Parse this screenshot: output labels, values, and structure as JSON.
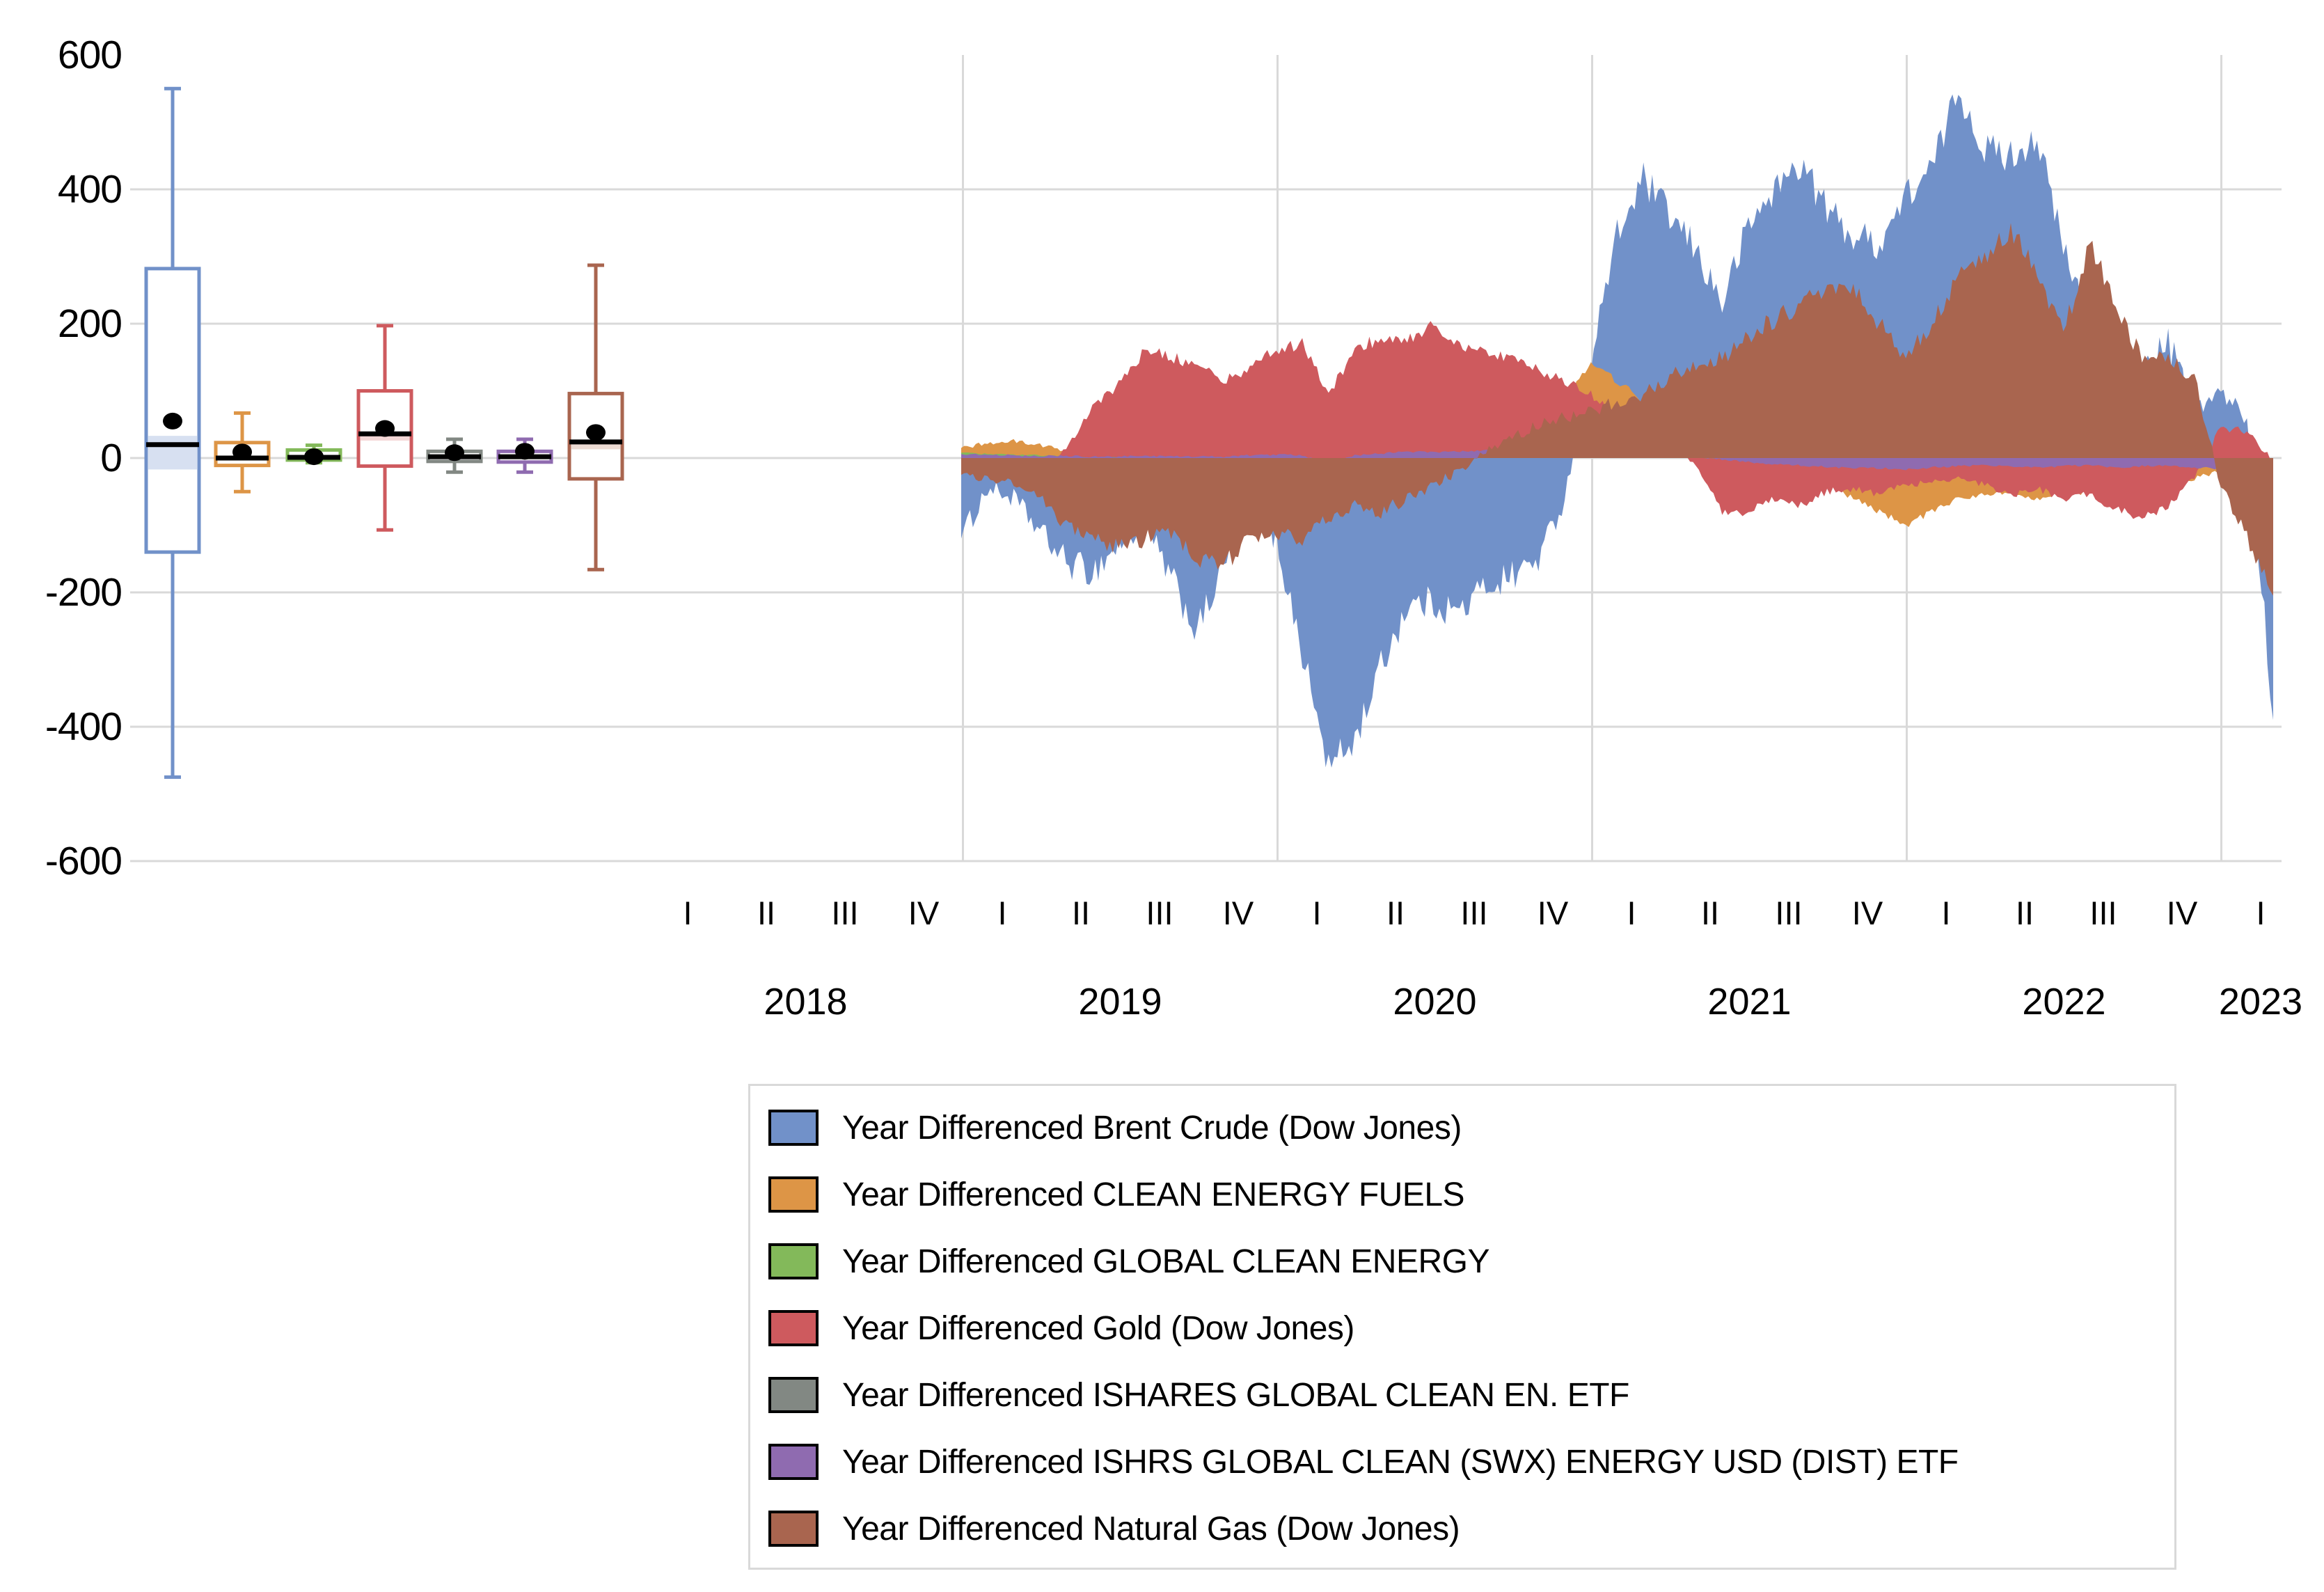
{
  "y_axis": {
    "tick_labels": [
      "600",
      "400",
      "200",
      "0",
      "-200",
      "-400",
      "-600"
    ],
    "tick_values": [
      600,
      400,
      200,
      0,
      -200,
      -400,
      -600
    ]
  },
  "x_axis": {
    "quarter_labels": [
      "I",
      "II",
      "III",
      "IV",
      "I",
      "II",
      "III",
      "IV",
      "I",
      "II",
      "III",
      "IV",
      "I",
      "II",
      "III",
      "IV",
      "I",
      "II",
      "III",
      "IV",
      "I"
    ],
    "year_labels": [
      "2018",
      "2019",
      "2020",
      "2021",
      "2022",
      "2023"
    ]
  },
  "colors": {
    "gridline": "#d9d9d9",
    "text": "#000000",
    "legend_border": "#d9d9d9",
    "background": "#ffffff"
  },
  "legend": {
    "items": [
      {
        "label": "Year Differenced Brent Crude (Dow Jones)",
        "color": "#7191C9"
      },
      {
        "label": "Year Differenced CLEAN ENERGY FUELS",
        "color": "#DD9546"
      },
      {
        "label": "Year Differenced GLOBAL CLEAN ENERGY",
        "color": "#83B95A"
      },
      {
        "label": "Year Differenced Gold  (Dow Jones)",
        "color": "#CE5A5E"
      },
      {
        "label": "Year Differenced ISHARES GLOBAL CLEAN EN. ETF",
        "color": "#828883"
      },
      {
        "label": "Year Differenced ISHRS GLOBAL CLEAN (SWX) ENERGY USD (DIST) ETF",
        "color": "#8F6BB0"
      },
      {
        "label": "Year Differenced Natural Gas (Dow Jones)",
        "color": "#A9654F"
      }
    ]
  },
  "chart_data": {
    "type": "area",
    "title": "",
    "xlabel": "",
    "ylabel": "",
    "ylim": [
      -600,
      600
    ],
    "grid": "on",
    "legend_position": "bottom",
    "gridline_values": [
      400,
      200,
      0,
      -200,
      -400,
      -600
    ],
    "year_boundary_gridlines": [
      "2019-01",
      "2020-01",
      "2021-01",
      "2022-01",
      "2023-01"
    ],
    "x_monthly": [
      "2019-01",
      "2019-02",
      "2019-03",
      "2019-04",
      "2019-05",
      "2019-06",
      "2019-07",
      "2019-08",
      "2019-09",
      "2019-10",
      "2019-11",
      "2019-12",
      "2020-01",
      "2020-02",
      "2020-03",
      "2020-04",
      "2020-05",
      "2020-06",
      "2020-07",
      "2020-08",
      "2020-09",
      "2020-10",
      "2020-11",
      "2020-12",
      "2021-01",
      "2021-02",
      "2021-03",
      "2021-04",
      "2021-05",
      "2021-06",
      "2021-07",
      "2021-08",
      "2021-09",
      "2021-10",
      "2021-11",
      "2021-12",
      "2022-01",
      "2022-02",
      "2022-03",
      "2022-04",
      "2022-05",
      "2022-06",
      "2022-07",
      "2022-08",
      "2022-09",
      "2022-10",
      "2022-11",
      "2022-12",
      "2023-01",
      "2023-02",
      "2023-03"
    ],
    "series": [
      {
        "name": "Year Differenced Brent Crude (Dow Jones)",
        "key": "brent",
        "color": "#7191C9",
        "noise": 26,
        "values": [
          -120,
          -45,
          -60,
          -110,
          -155,
          -170,
          -130,
          -100,
          -180,
          -260,
          -160,
          -90,
          -120,
          -290,
          -460,
          -420,
          -310,
          -220,
          -215,
          -230,
          -190,
          -175,
          -150,
          -60,
          150,
          330,
          415,
          360,
          310,
          230,
          345,
          400,
          440,
          370,
          330,
          320,
          390,
          430,
          550,
          460,
          450,
          480,
          310,
          200,
          105,
          130,
          170,
          80,
          95,
          60,
          -390
        ]
      },
      {
        "name": "Year Differenced CLEAN ENERGY FUELS",
        "key": "clean-energy-fuels",
        "color": "#DD9546",
        "noise": 7,
        "values": [
          15,
          22,
          25,
          20,
          10,
          5,
          0,
          0,
          0,
          0,
          0,
          0,
          0,
          0,
          0,
          0,
          0,
          0,
          5,
          10,
          15,
          25,
          40,
          90,
          140,
          115,
          85,
          50,
          20,
          -10,
          -25,
          -30,
          -35,
          -40,
          -60,
          -80,
          -100,
          -80,
          -60,
          -55,
          -50,
          -60,
          -55,
          -50,
          -60,
          -55,
          -40,
          -30,
          -20,
          -35,
          -25
        ]
      },
      {
        "name": "Year Differenced GLOBAL CLEAN ENERGY",
        "key": "global-clean-energy",
        "color": "#83B95A",
        "noise": 2.5,
        "values": [
          8,
          6,
          5,
          4,
          3,
          2,
          2,
          3,
          3,
          2,
          2,
          4,
          4,
          3,
          -5,
          3,
          6,
          8,
          8,
          9,
          10,
          10,
          12,
          15,
          18,
          12,
          8,
          5,
          2,
          0,
          -2,
          -4,
          -5,
          -6,
          -8,
          -8,
          -10,
          -8,
          -6,
          -5,
          -6,
          -8,
          -6,
          -5,
          -8,
          -6,
          -5,
          -8,
          -10,
          -15,
          -8
        ]
      },
      {
        "name": "Year Differenced Gold  (Dow Jones)",
        "key": "gold",
        "color": "#CE5A5E",
        "noise": 10,
        "values": [
          -15,
          -20,
          -30,
          -30,
          15,
          75,
          110,
          160,
          150,
          140,
          115,
          135,
          160,
          170,
          95,
          160,
          180,
          175,
          200,
          165,
          155,
          150,
          130,
          115,
          95,
          65,
          40,
          25,
          -10,
          -80,
          -80,
          -60,
          -70,
          -50,
          -45,
          -55,
          -40,
          -35,
          -30,
          -40,
          -55,
          -45,
          -60,
          -55,
          -75,
          -90,
          -70,
          -30,
          45,
          40,
          -5
        ]
      },
      {
        "name": "Year Differenced ISHARES GLOBAL CLEAN EN. ETF",
        "key": "ishares-global-clean",
        "color": "#828883",
        "noise": 2.5,
        "values": [
          5,
          4,
          3,
          2,
          2,
          1,
          1,
          2,
          2,
          1,
          1,
          3,
          3,
          2,
          -6,
          2,
          5,
          7,
          7,
          8,
          9,
          9,
          11,
          14,
          16,
          11,
          7,
          4,
          1,
          -1,
          -3,
          -5,
          -6,
          -7,
          -9,
          -9,
          -11,
          -9,
          -7,
          -6,
          -7,
          -9,
          -7,
          -6,
          -9,
          -7,
          -6,
          -9,
          -11,
          -16,
          -9
        ]
      },
      {
        "name": "Year Differenced ISHRS GLOBAL CLEAN (SWX) ENERGY USD (DIST) ETF",
        "key": "ishrs-swx",
        "color": "#8F6BB0",
        "noise": 3.5,
        "values": [
          6,
          5,
          4,
          3,
          3,
          2,
          2,
          3,
          3,
          2,
          2,
          4,
          5,
          4,
          -8,
          4,
          7,
          9,
          9,
          10,
          11,
          11,
          14,
          18,
          22,
          15,
          10,
          6,
          2,
          -2,
          -6,
          -9,
          -11,
          -13,
          -15,
          -15,
          -17,
          -14,
          -12,
          -11,
          -12,
          -14,
          -12,
          -11,
          -14,
          -12,
          -11,
          -14,
          -16,
          -24,
          -14
        ]
      },
      {
        "name": "Year Differenced Natural Gas (Dow Jones)",
        "key": "natural-gas",
        "color": "#A9654F",
        "noise": 16,
        "values": [
          -25,
          -30,
          -40,
          -60,
          -100,
          -120,
          -135,
          -120,
          -110,
          -150,
          -160,
          -120,
          -110,
          -120,
          -90,
          -70,
          -80,
          -60,
          -40,
          -20,
          10,
          30,
          50,
          60,
          70,
          85,
          95,
          120,
          135,
          150,
          185,
          205,
          230,
          250,
          250,
          200,
          150,
          200,
          270,
          300,
          340,
          280,
          185,
          320,
          230,
          150,
          150,
          120,
          -40,
          -120,
          -205
        ]
      }
    ],
    "boxplots": [
      {
        "name": "Year Differenced Brent Crude (Dow Jones)",
        "key": "brent",
        "color": "#7191C9",
        "whisker_low": -475,
        "q1": -140,
        "median": 20,
        "mean": 55,
        "q3": 282,
        "whisker_high": 550,
        "ci": [
          -17,
          33
        ],
        "ci_color": "#D7E0F1"
      },
      {
        "name": "Year Differenced CLEAN ENERGY FUELS",
        "key": "clean-energy-fuels",
        "color": "#DD9546",
        "whisker_low": -50,
        "q1": -11,
        "median": 0,
        "mean": 9,
        "q3": 23,
        "whisker_high": 67,
        "ci": null,
        "ci_color": null
      },
      {
        "name": "Year Differenced GLOBAL CLEAN ENERGY",
        "key": "global-clean-energy",
        "color": "#83B95A",
        "whisker_low": -7,
        "q1": -3,
        "median": 1,
        "mean": 2,
        "q3": 12,
        "whisker_high": 19,
        "ci": null,
        "ci_color": null
      },
      {
        "name": "Year Differenced Gold  (Dow Jones)",
        "key": "gold",
        "color": "#CE5A5E",
        "whisker_low": -107,
        "q1": -12,
        "median": 36,
        "mean": 44,
        "q3": 100,
        "whisker_high": 197,
        "ci": [
          26,
          36
        ],
        "ci_color": "#F4D7D6"
      },
      {
        "name": "Year Differenced ISHARES GLOBAL CLEAN EN. ETF",
        "key": "ishares-global-clean",
        "color": "#828883",
        "whisker_low": -21,
        "q1": -5,
        "median": 2,
        "mean": 8,
        "q3": 10,
        "whisker_high": 28,
        "ci": null,
        "ci_color": null
      },
      {
        "name": "Year Differenced ISHRS GLOBAL CLEAN (SWX) ENERGY USD (DIST) ETF",
        "key": "ishrs-swx",
        "color": "#8F6BB0",
        "whisker_low": -21,
        "q1": -6,
        "median": 2,
        "mean": 10,
        "q3": 10,
        "whisker_high": 28,
        "ci": null,
        "ci_color": null
      },
      {
        "name": "Year Differenced Natural Gas (Dow Jones)",
        "key": "natural-gas",
        "color": "#A9654F",
        "whisker_low": -166,
        "q1": -31,
        "median": 24,
        "mean": 38,
        "q3": 96,
        "whisker_high": 287,
        "ci": [
          13,
          24
        ],
        "ci_color": "#ECDAD2"
      }
    ]
  }
}
